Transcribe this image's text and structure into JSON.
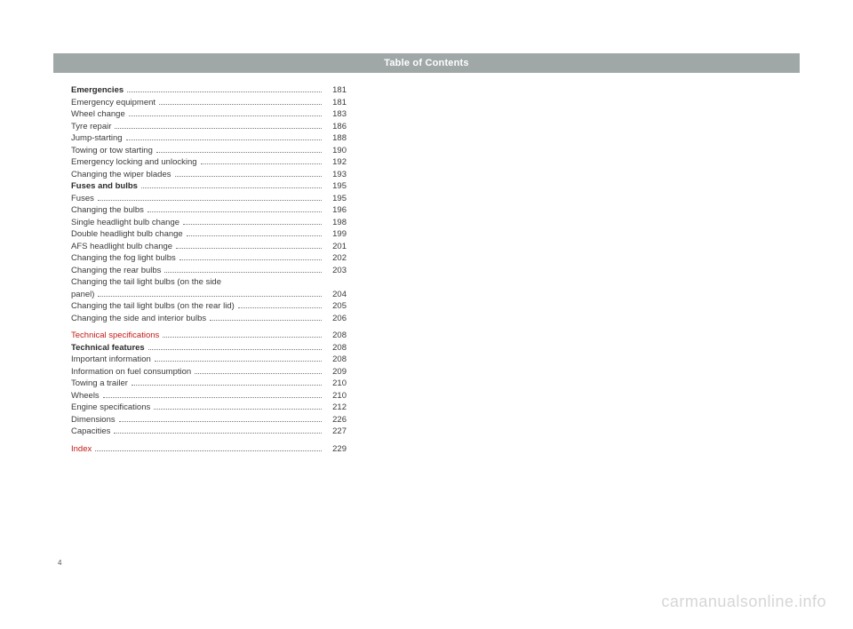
{
  "header": {
    "title": "Table of Contents"
  },
  "pageNumber": "4",
  "watermark": "carmanualsonline.info",
  "toc": [
    {
      "label": "Emergencies",
      "page": "181",
      "style": "bold"
    },
    {
      "label": "Emergency equipment",
      "page": "181",
      "style": ""
    },
    {
      "label": "Wheel change",
      "page": "183",
      "style": ""
    },
    {
      "label": "Tyre repair",
      "page": "186",
      "style": ""
    },
    {
      "label": "Jump-starting",
      "page": "188",
      "style": ""
    },
    {
      "label": "Towing or tow starting",
      "page": "190",
      "style": ""
    },
    {
      "label": "Emergency locking and unlocking",
      "page": "192",
      "style": ""
    },
    {
      "label": "Changing the wiper blades",
      "page": "193",
      "style": ""
    },
    {
      "label": "Fuses and bulbs",
      "page": "195",
      "style": "bold"
    },
    {
      "label": "Fuses",
      "page": "195",
      "style": ""
    },
    {
      "label": "Changing the bulbs",
      "page": "196",
      "style": ""
    },
    {
      "label": "Single headlight bulb change",
      "page": "198",
      "style": ""
    },
    {
      "label": "Double headlight bulb change",
      "page": "199",
      "style": ""
    },
    {
      "label": "AFS headlight bulb change",
      "page": "201",
      "style": ""
    },
    {
      "label": "Changing the fog light bulbs",
      "page": "202",
      "style": ""
    },
    {
      "label": "Changing the rear bulbs",
      "page": "203",
      "style": ""
    },
    {
      "label": "Changing the tail light bulbs (on the side panel)",
      "page": "204",
      "style": "",
      "wrap": true
    },
    {
      "label": "Changing the tail light bulbs (on the rear lid)",
      "page": "205",
      "style": ""
    },
    {
      "label": "Changing the side and interior bulbs",
      "page": "206",
      "style": ""
    },
    {
      "gap": true
    },
    {
      "label": "Technical specifications",
      "page": "208",
      "style": "red"
    },
    {
      "label": "Technical features",
      "page": "208",
      "style": "bold"
    },
    {
      "label": "Important information",
      "page": "208",
      "style": ""
    },
    {
      "label": "Information on fuel consumption",
      "page": "209",
      "style": ""
    },
    {
      "label": "Towing a trailer",
      "page": "210",
      "style": ""
    },
    {
      "label": "Wheels",
      "page": "210",
      "style": ""
    },
    {
      "label": "Engine specifications",
      "page": "212",
      "style": ""
    },
    {
      "label": "Dimensions",
      "page": "226",
      "style": ""
    },
    {
      "label": "Capacities",
      "page": "227",
      "style": ""
    },
    {
      "gap": true
    },
    {
      "label": "Index",
      "page": "229",
      "style": "red"
    }
  ]
}
